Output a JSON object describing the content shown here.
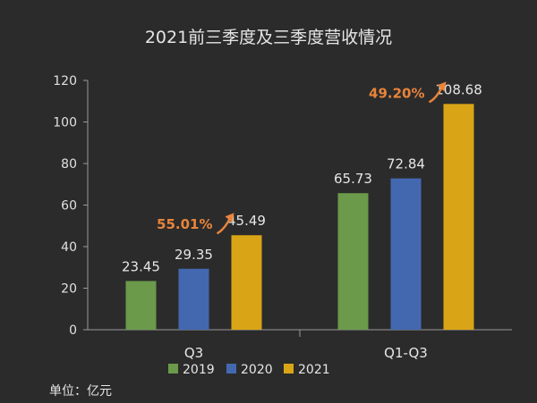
{
  "chart_data": {
    "type": "bar",
    "title": "2021前三季度及三季度营收情况",
    "categories": [
      "Q3",
      "Q1-Q3"
    ],
    "series": [
      {
        "name": "2019",
        "values": [
          23.45,
          65.73
        ],
        "labels": [
          "23.45",
          "65.73"
        ],
        "color": "#6a9a4a"
      },
      {
        "name": "2020",
        "values": [
          29.35,
          72.84
        ],
        "labels": [
          "29.35",
          "72.84"
        ],
        "color": "#4468b0"
      },
      {
        "name": "2021",
        "values": [
          45.49,
          108.68
        ],
        "labels": [
          "45.49",
          "108.68"
        ],
        "color": "#d9a516"
      }
    ],
    "yticks": [
      "0",
      "20",
      "40",
      "60",
      "80",
      "100",
      "120"
    ],
    "ylim": [
      0,
      120
    ],
    "growth_labels": [
      "55.01%",
      "49.20%"
    ],
    "growth_color": "#e8843a",
    "legend_position": "bottom",
    "grid": false
  },
  "unit_label": "单位：亿元"
}
